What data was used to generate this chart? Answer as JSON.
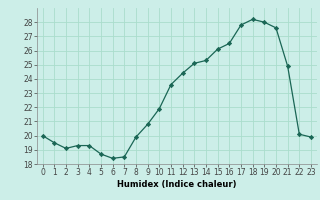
{
  "x": [
    0,
    1,
    2,
    3,
    4,
    5,
    6,
    7,
    8,
    9,
    10,
    11,
    12,
    13,
    14,
    15,
    16,
    17,
    18,
    19,
    20,
    21,
    22,
    23
  ],
  "y": [
    20.0,
    19.5,
    19.1,
    19.3,
    19.3,
    18.7,
    18.4,
    18.5,
    19.9,
    20.8,
    21.9,
    23.6,
    24.4,
    25.1,
    25.3,
    26.1,
    26.5,
    27.8,
    28.2,
    28.0,
    27.6,
    24.9,
    20.1,
    19.9
  ],
  "xlabel": "Humidex (Indice chaleur)",
  "background_color": "#cceee8",
  "grid_color": "#aaddcc",
  "line_color": "#1a6655",
  "marker": "D",
  "marker_size": 2.2,
  "ylim": [
    18,
    29
  ],
  "xlim": [
    -0.5,
    23.5
  ],
  "yticks": [
    18,
    19,
    20,
    21,
    22,
    23,
    24,
    25,
    26,
    27,
    28
  ],
  "xticks": [
    0,
    1,
    2,
    3,
    4,
    5,
    6,
    7,
    8,
    9,
    10,
    11,
    12,
    13,
    14,
    15,
    16,
    17,
    18,
    19,
    20,
    21,
    22,
    23
  ],
  "xtick_labels": [
    "0",
    "1",
    "2",
    "3",
    "4",
    "5",
    "6",
    "7",
    "8",
    "9",
    "10",
    "11",
    "12",
    "13",
    "14",
    "15",
    "16",
    "17",
    "18",
    "19",
    "20",
    "21",
    "22",
    "23"
  ],
  "axis_fontsize": 6.0,
  "tick_fontsize": 5.5
}
